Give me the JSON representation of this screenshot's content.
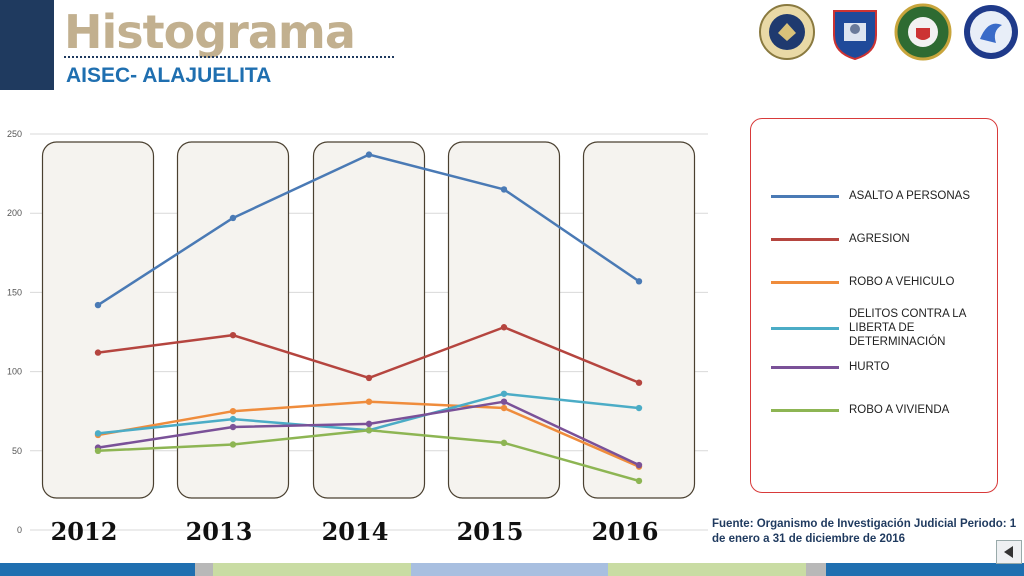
{
  "header": {
    "title": "Histograma",
    "subtitle": "AISEC- ALAJUELITA"
  },
  "logos": [
    "us-embassy-seal-icon",
    "fuerza-publica-shield-icon",
    "police-emblem-icon",
    "aisec-logo-icon"
  ],
  "footnote": "Fuente: Organismo de Investigación Judicial Periodo: 1 de enero a 31 de diciembre de 2016",
  "colors": {
    "header_block": "#1f3a5f",
    "title": "#c2b08f",
    "subtitle": "#1f6fb0",
    "legend_border": "#d83a3a",
    "column_fill": "#f5f3ef",
    "column_border": "#4a4030"
  },
  "chart_data": {
    "type": "line",
    "categories": [
      "2012",
      "2013",
      "2014",
      "2015",
      "2016"
    ],
    "ylim": [
      0,
      250
    ],
    "yticks": [
      0,
      50,
      100,
      150,
      200,
      250
    ],
    "grid": true,
    "legend_position": "right",
    "series": [
      {
        "name": "ASALTO A PERSONAS",
        "color": "#4a7ab5",
        "values": [
          142,
          197,
          237,
          215,
          157
        ]
      },
      {
        "name": "AGRESION",
        "color": "#b5453f",
        "values": [
          112,
          123,
          96,
          128,
          93
        ]
      },
      {
        "name": "ROBO A VEHICULO",
        "color": "#ef8c3c",
        "values": [
          60,
          75,
          81,
          77,
          40
        ]
      },
      {
        "name": "DELITOS CONTRA LA LIBERTA DE DETERMINACIÓN",
        "color": "#4bacc6",
        "values": [
          61,
          70,
          63,
          86,
          77
        ]
      },
      {
        "name": "HURTO",
        "color": "#7a5198",
        "values": [
          52,
          65,
          67,
          81,
          41
        ]
      },
      {
        "name": "ROBO A VIVIENDA",
        "color": "#8db553",
        "values": [
          50,
          54,
          63,
          55,
          31
        ]
      }
    ]
  }
}
